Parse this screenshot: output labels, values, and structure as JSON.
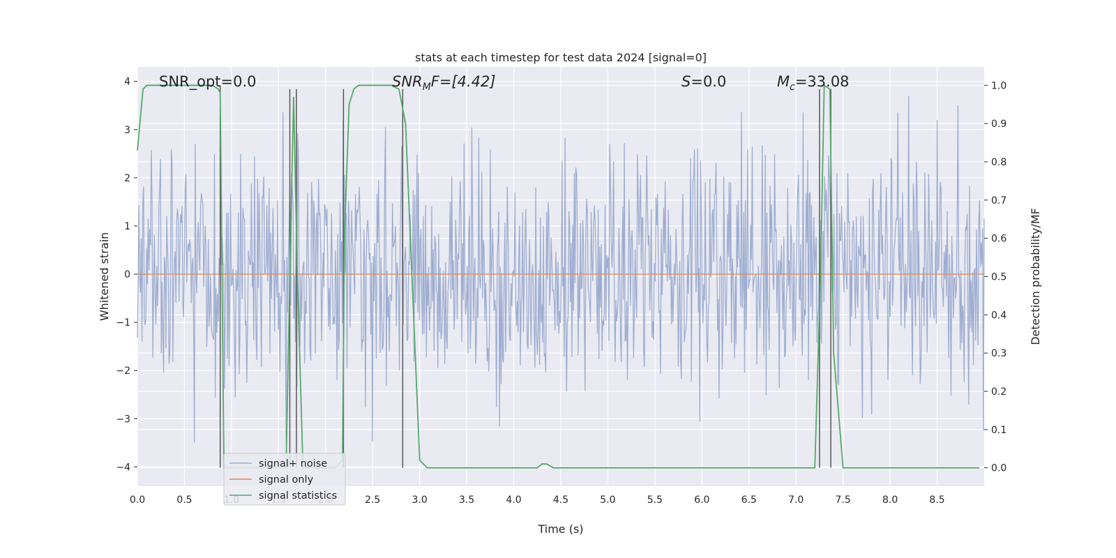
{
  "chart_data": {
    "type": "line",
    "title": "stats at each timestep for test data 2024 [signal=0]",
    "xlabel": "Time (s)",
    "ylabel": "Whitened strain",
    "y2label": "Detection probability/MF",
    "xlim": [
      0.0,
      9.0
    ],
    "ylim": [
      -4.4,
      4.3
    ],
    "y2lim": [
      -0.048,
      1.048
    ],
    "x_ticks": [
      0.0,
      0.5,
      1.0,
      1.5,
      2.0,
      2.5,
      3.0,
      3.5,
      4.0,
      4.5,
      5.0,
      5.5,
      6.0,
      6.5,
      7.0,
      7.5,
      8.0,
      8.5
    ],
    "x_tick_labels": [
      "0.0",
      "0.5",
      "1.0",
      "1.5",
      "2.0",
      "2.5",
      "3.0",
      "3.5",
      "4.0",
      "4.5",
      "5.0",
      "5.5",
      "6.0",
      "6.5",
      "7.0",
      "7.5",
      "8.0",
      "8.5"
    ],
    "y_ticks": [
      -4,
      -3,
      -2,
      -1,
      0,
      1,
      2,
      3,
      4
    ],
    "y_tick_labels": [
      "−4",
      "−3",
      "−2",
      "−1",
      "0",
      "1",
      "2",
      "3",
      "4"
    ],
    "y2_ticks": [
      0.0,
      0.1,
      0.2,
      0.3,
      0.4,
      0.5,
      0.6,
      0.7,
      0.8,
      0.9,
      1.0
    ],
    "y2_tick_labels": [
      "0.0",
      "0.1",
      "0.2",
      "0.3",
      "0.4",
      "0.5",
      "0.6",
      "0.7",
      "0.8",
      "0.9",
      "1.0"
    ],
    "grid": true,
    "legend_position": "lower-left",
    "annotations": {
      "snr_opt": "SNR_opt=0.0",
      "snr_mf_base": "SNR",
      "snr_mf_sub": "M",
      "snr_mf_rest": "F=[4.42]",
      "s_label": "S",
      "s_value": "=0.0",
      "mc_label": "M",
      "mc_sub": "c",
      "mc_value": "=33.08"
    },
    "series": [
      {
        "name": "signal+ noise",
        "color": "#9aabcf",
        "axis": "left",
        "sampling": "noise, approx. 1000 samples from 0.0 to 9.0 s",
        "amplitude_envelope": [
          -3.8,
          3.9
        ]
      },
      {
        "name": "signal only",
        "color": "#dd8452",
        "axis": "left",
        "x": [
          0.0,
          9.0
        ],
        "y": [
          0.0,
          0.0
        ]
      },
      {
        "name": "signal statistics",
        "color": "#55a868",
        "axis": "right",
        "x": [
          0.0,
          0.06,
          0.1,
          0.2,
          0.8,
          0.86,
          0.88,
          0.92,
          1.58,
          1.62,
          1.66,
          1.7,
          1.76,
          2.1,
          2.18,
          2.2,
          2.25,
          2.3,
          2.35,
          2.7,
          2.78,
          2.85,
          3.0,
          3.08,
          4.25,
          4.3,
          4.35,
          4.42,
          7.2,
          7.26,
          7.3,
          7.36,
          7.4,
          7.5,
          8.95
        ],
        "y": [
          0.83,
          0.99,
          1.0,
          1.0,
          1.0,
          0.99,
          0.98,
          0.0,
          0.0,
          0.5,
          0.97,
          0.5,
          0.0,
          0.0,
          0.02,
          0.6,
          0.95,
          0.99,
          1.0,
          1.0,
          0.99,
          0.9,
          0.02,
          0.0,
          0.0,
          0.01,
          0.01,
          0.0,
          0.0,
          0.5,
          1.0,
          0.99,
          0.3,
          0.0,
          0.0
        ]
      }
    ],
    "vertical_markers": [
      {
        "x": 0.88,
        "y_top": 1.0
      },
      {
        "x": 1.62,
        "y_top": 0.99
      },
      {
        "x": 1.69,
        "y_top": 0.99
      },
      {
        "x": 2.19,
        "y_top": 0.99
      },
      {
        "x": 2.82,
        "y_top": 0.99
      },
      {
        "x": 7.25,
        "y_top": 0.99
      },
      {
        "x": 7.37,
        "y_top": 0.99
      }
    ]
  }
}
